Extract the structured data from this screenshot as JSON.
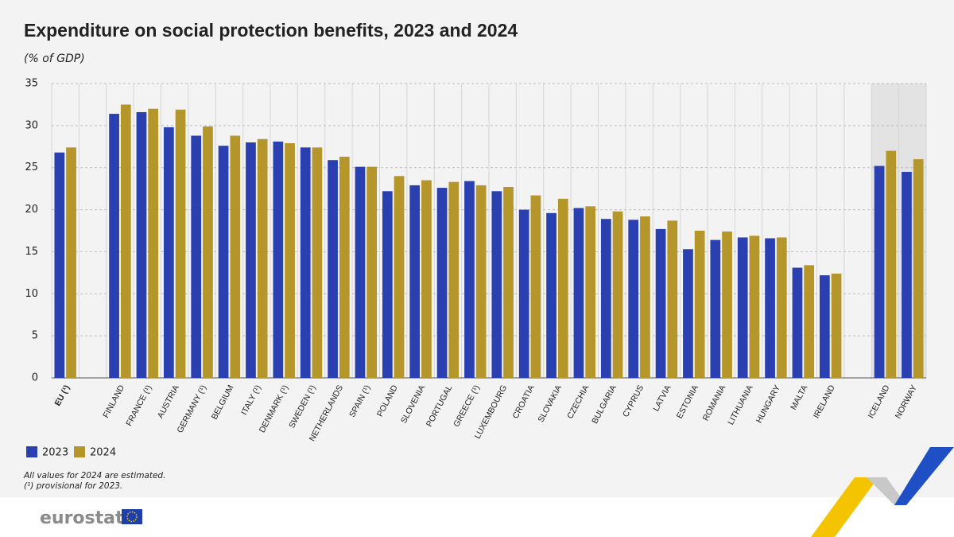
{
  "chart_data": {
    "type": "bar",
    "title": "Expenditure on social protection benefits, 2023 and 2024",
    "subtitle": "(% of GDP)",
    "categories": [
      "EU (¹)",
      null,
      "FINLAND",
      "FRANCE (¹)",
      "AUSTRIA",
      "GERMANY (¹)",
      "BELGIUM",
      "ITALY (¹)",
      "DENMARK (¹)",
      "SWEDEN (¹)",
      "NETHERLANDS",
      "SPAIN (¹)",
      "POLAND",
      "SLOVENIA",
      "PORTUGAL",
      "GREECE (¹)",
      "LUXEMBOURG",
      "CROATIA",
      "SLOVAKIA",
      "CZECHIA",
      "BULGARIA",
      "CYPRUS",
      "LATVIA",
      "ESTONIA",
      "ROMANIA",
      "LITHUANIA",
      "HUNGARY",
      "MALTA",
      "IRELAND",
      null,
      "ICELAND",
      "NORWAY"
    ],
    "series": [
      {
        "name": "2023",
        "color": "#2a3fb0",
        "values": [
          26.8,
          null,
          31.4,
          31.6,
          29.8,
          28.8,
          27.6,
          28.0,
          28.1,
          27.4,
          25.9,
          25.1,
          22.2,
          22.9,
          22.6,
          23.4,
          22.2,
          20.0,
          19.6,
          20.2,
          18.9,
          18.8,
          17.7,
          15.3,
          16.4,
          16.7,
          16.6,
          13.1,
          12.2,
          null,
          25.2,
          24.5
        ]
      },
      {
        "name": "2024",
        "color": "#b5962a",
        "values": [
          27.4,
          null,
          32.5,
          32.0,
          31.9,
          29.9,
          28.8,
          28.4,
          27.9,
          27.4,
          26.3,
          25.1,
          24.0,
          23.5,
          23.3,
          22.9,
          22.7,
          21.7,
          21.3,
          20.4,
          19.8,
          19.2,
          18.7,
          17.5,
          17.4,
          16.9,
          16.7,
          13.4,
          12.4,
          null,
          27.0,
          26.0
        ]
      }
    ],
    "ylim": [
      0,
      35
    ],
    "yticks": [
      0,
      5,
      10,
      15,
      20,
      25,
      30,
      35
    ],
    "grid": true,
    "notes": [
      "All values for 2024 are estimated.",
      "(¹) provisional for 2023."
    ]
  },
  "logo": "eurostat"
}
